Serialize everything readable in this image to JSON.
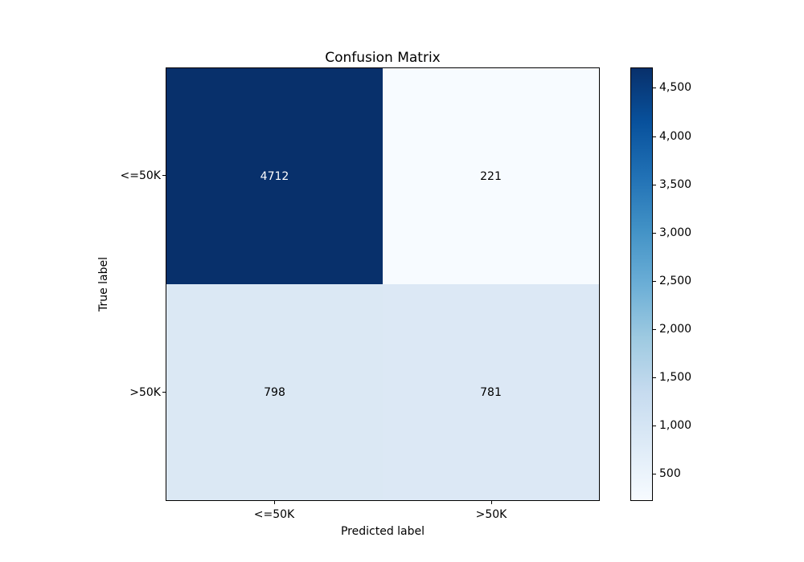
{
  "chart_data": {
    "type": "heatmap",
    "title": "Confusion Matrix",
    "xlabel": "Predicted label",
    "ylabel": "True label",
    "x_tick_labels": [
      "<=50K",
      ">50K"
    ],
    "y_tick_labels": [
      "<=50K",
      ">50K"
    ],
    "categories_x": [
      "<=50K",
      ">50K"
    ],
    "categories_y": [
      "<=50K",
      ">50K"
    ],
    "matrix": [
      [
        4712,
        221
      ],
      [
        798,
        781
      ]
    ],
    "cells": [
      {
        "row_label": "<=50K",
        "col_label": "<=50K",
        "value": 4712,
        "label": "4712",
        "bg": "#08306b",
        "fg": "#ffffff"
      },
      {
        "row_label": "<=50K",
        "col_label": ">50K",
        "value": 221,
        "label": "221",
        "bg": "#f7fbff",
        "fg": "#000000"
      },
      {
        "row_label": ">50K",
        "col_label": "<=50K",
        "value": 798,
        "label": "798",
        "bg": "#dbe8f4",
        "fg": "#000000"
      },
      {
        "row_label": ">50K",
        "col_label": ">50K",
        "value": 781,
        "label": "781",
        "bg": "#dce8f5",
        "fg": "#000000"
      }
    ],
    "colorbar": {
      "colormap": "Blues",
      "vmin": 221,
      "vmax": 4712,
      "ticks": [
        500,
        1000,
        1500,
        2000,
        2500,
        3000,
        3500,
        4000,
        4500
      ],
      "tick_labels": [
        "500",
        "1,000",
        "1,500",
        "2,000",
        "2,500",
        "3,000",
        "3,500",
        "4,000",
        "4,500"
      ],
      "gradient_stops": [
        "#f7fbff",
        "#deebf7",
        "#c6dbef",
        "#9ecae1",
        "#6baed6",
        "#4292c6",
        "#2171b5",
        "#08519c",
        "#08306b"
      ]
    },
    "layout": {
      "grid": false,
      "legend": false,
      "colorbar_position": "right"
    }
  }
}
